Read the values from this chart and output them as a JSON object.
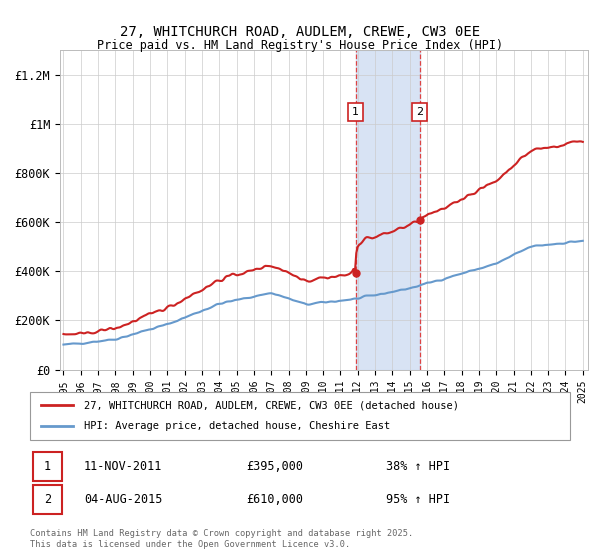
{
  "title": "27, WHITCHURCH ROAD, AUDLEM, CREWE, CW3 0EE",
  "subtitle": "Price paid vs. HM Land Registry's House Price Index (HPI)",
  "ylim": [
    0,
    1300000
  ],
  "yticks": [
    0,
    200000,
    400000,
    600000,
    800000,
    1000000,
    1200000
  ],
  "ytick_labels": [
    "£0",
    "£200K",
    "£400K",
    "£600K",
    "£800K",
    "£1M",
    "£1.2M"
  ],
  "legend_entry1": "27, WHITCHURCH ROAD, AUDLEM, CREWE, CW3 0EE (detached house)",
  "legend_entry2": "HPI: Average price, detached house, Cheshire East",
  "annotation1_label": "1",
  "annotation1_date": "11-NOV-2011",
  "annotation1_price": "£395,000",
  "annotation1_hpi": "38% ↑ HPI",
  "annotation2_label": "2",
  "annotation2_date": "04-AUG-2015",
  "annotation2_price": "£610,000",
  "annotation2_hpi": "95% ↑ HPI",
  "footer": "Contains HM Land Registry data © Crown copyright and database right 2025.\nThis data is licensed under the Open Government Licence v3.0.",
  "sale1_year": 2011.87,
  "sale1_price": 395000,
  "sale2_year": 2015.58,
  "sale2_price": 610000,
  "hpi_color": "#6699cc",
  "price_color": "#cc2222",
  "shade_color": "#c8d8f0",
  "vline_color": "#dd4444",
  "background_color": "#ffffff"
}
